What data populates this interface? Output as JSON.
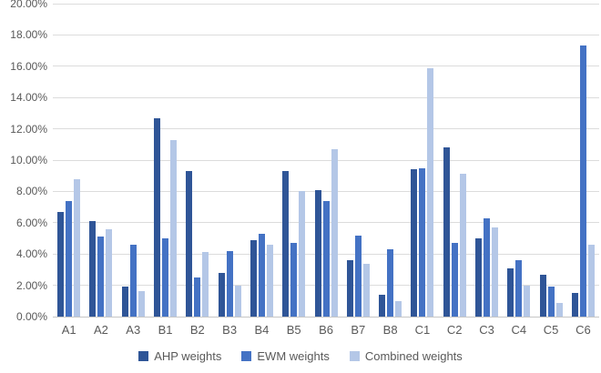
{
  "chart_data": {
    "type": "bar",
    "title": "",
    "xlabel": "",
    "ylabel": "",
    "value_unit": "percent",
    "categories": [
      "A1",
      "A2",
      "A3",
      "B1",
      "B2",
      "B3",
      "B4",
      "B5",
      "B6",
      "B7",
      "B8",
      "C1",
      "C2",
      "C3",
      "C4",
      "C5",
      "C6"
    ],
    "series": [
      {
        "name": "AHP weights",
        "color": "#2F5597",
        "values": [
          6.7,
          6.1,
          1.9,
          12.7,
          9.3,
          2.8,
          4.9,
          9.3,
          8.1,
          3.6,
          1.4,
          9.4,
          10.8,
          5.0,
          3.1,
          2.7,
          1.5
        ]
      },
      {
        "name": "EWM weights",
        "color": "#4472C4",
        "values": [
          7.4,
          5.1,
          4.6,
          5.0,
          2.5,
          4.2,
          5.3,
          4.7,
          7.4,
          5.2,
          4.3,
          9.5,
          4.7,
          6.3,
          3.6,
          1.9,
          17.3
        ]
      },
      {
        "name": "Combined weights",
        "color": "#B4C7E7",
        "values": [
          8.8,
          5.6,
          1.6,
          11.3,
          4.1,
          2.0,
          4.6,
          8.0,
          10.7,
          3.4,
          1.0,
          15.9,
          9.1,
          5.7,
          2.0,
          0.9,
          4.6
        ]
      }
    ],
    "ylim": [
      0,
      20
    ],
    "ytick_step": 2,
    "ytick_labels": [
      "0.00%",
      "2.00%",
      "4.00%",
      "6.00%",
      "8.00%",
      "10.00%",
      "12.00%",
      "14.00%",
      "16.00%",
      "18.00%",
      "20.00%"
    ],
    "grid": "horizontal",
    "legend_position": "bottom",
    "colors": {
      "axis_text": "#595959",
      "gridline": "#DCDCDC",
      "axis_line": "#C6C6C6",
      "background": "#FFFFFF"
    }
  }
}
